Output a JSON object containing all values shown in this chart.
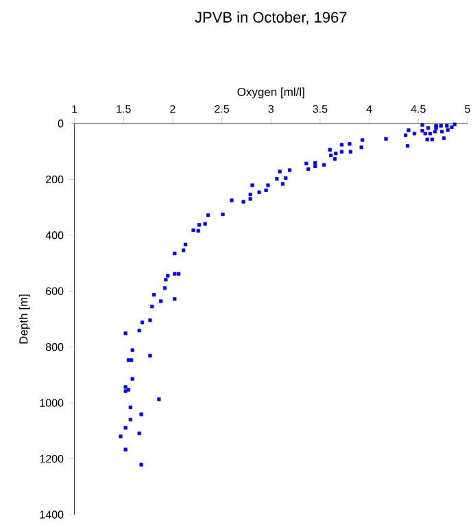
{
  "chart_data": {
    "type": "scatter",
    "title": "JPVB in October, 1967",
    "xlabel": "Oxygen [ml/l]",
    "ylabel": "Depth [m]",
    "xlim": [
      1,
      5
    ],
    "xticks": [
      1,
      1.5,
      2,
      2.5,
      3,
      3.5,
      4,
      4.5,
      5
    ],
    "ylim": [
      1400,
      0
    ],
    "yticks": [
      0,
      200,
      400,
      600,
      800,
      1000,
      1200,
      1400
    ],
    "marker": "square",
    "series": [
      {
        "color": "#0000ff",
        "x": [
          4.54,
          4.54,
          4.57,
          4.6,
          4.62,
          4.64,
          4.68,
          4.67,
          4.73,
          4.74,
          4.76,
          4.79,
          4.8,
          4.87,
          4.84,
          4.59,
          4.68,
          4.46,
          4.4,
          4.37,
          4.39,
          4.17,
          3.93,
          3.92,
          3.81,
          3.8,
          3.72,
          3.72,
          3.66,
          3.65,
          3.6,
          3.61,
          3.54,
          3.45,
          3.45,
          3.38,
          3.36,
          3.19,
          3.09,
          3.06,
          3.15,
          3.12,
          2.97,
          2.95,
          2.88,
          2.81,
          2.79,
          2.79,
          2.72,
          2.6,
          2.51,
          2.36,
          2.33,
          2.27,
          2.26,
          2.21,
          2.13,
          2.11,
          2.02,
          2.02,
          2.06,
          1.95,
          1.93,
          1.92,
          2.02,
          1.81,
          1.88,
          1.79,
          1.77,
          1.69,
          1.66,
          1.52,
          1.59,
          1.77,
          1.55,
          1.58,
          1.59,
          1.52,
          1.52,
          1.55,
          1.86,
          1.57,
          1.68,
          1.57,
          1.52,
          1.66,
          1.47,
          1.52,
          1.68
        ],
        "values": [
          5,
          26,
          36,
          16,
          36,
          57,
          8,
          29,
          8,
          29,
          52,
          8,
          23,
          3,
          13,
          57,
          16,
          36,
          24,
          42,
          80,
          55,
          59,
          85,
          101,
          73,
          76,
          101,
          107,
          127,
          94,
          114,
          148,
          141,
          153,
          163,
          143,
          167,
          172,
          198,
          195,
          216,
          221,
          239,
          246,
          221,
          254,
          270,
          280,
          275,
          325,
          328,
          359,
          363,
          384,
          382,
          433,
          454,
          465,
          538,
          538,
          545,
          559,
          589,
          628,
          613,
          636,
          655,
          704,
          712,
          741,
          751,
          811,
          831,
          847,
          847,
          914,
          943,
          958,
          953,
          987,
          1016,
          1041,
          1060,
          1089,
          1109,
          1120,
          1167,
          1221
        ]
      }
    ]
  }
}
